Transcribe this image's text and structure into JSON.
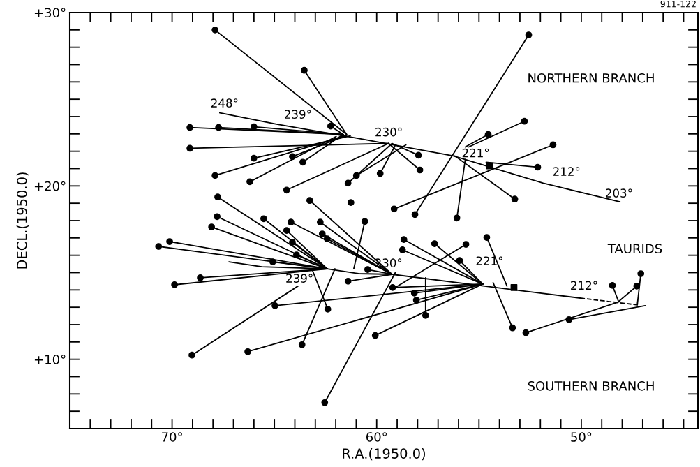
{
  "chart_data": {
    "type": "line",
    "xlabel": "R.A.(1950.0)",
    "ylabel": "DECL.(1950.0)",
    "xlim": [
      75,
      44.3
    ],
    "ylim": [
      6,
      30
    ],
    "xticks": [
      {
        "value": 75,
        "label": null
      },
      {
        "value": 74,
        "label": null
      },
      {
        "value": 73,
        "label": null
      },
      {
        "value": 72,
        "label": null
      },
      {
        "value": 71,
        "label": null
      },
      {
        "value": 70,
        "label": "70°"
      },
      {
        "value": 69,
        "label": null
      },
      {
        "value": 68,
        "label": null
      },
      {
        "value": 67,
        "label": null
      },
      {
        "value": 66,
        "label": null
      },
      {
        "value": 65,
        "label": null
      },
      {
        "value": 64,
        "label": null
      },
      {
        "value": 63,
        "label": null
      },
      {
        "value": 62,
        "label": null
      },
      {
        "value": 61,
        "label": null
      },
      {
        "value": 60,
        "label": "60°"
      },
      {
        "value": 59,
        "label": null
      },
      {
        "value": 58,
        "label": null
      },
      {
        "value": 57,
        "label": null
      },
      {
        "value": 56,
        "label": null
      },
      {
        "value": 55,
        "label": null
      },
      {
        "value": 54,
        "label": null
      },
      {
        "value": 53,
        "label": null
      },
      {
        "value": 52,
        "label": null
      },
      {
        "value": 51,
        "label": null
      },
      {
        "value": 50,
        "label": "50°"
      },
      {
        "value": 49,
        "label": null
      },
      {
        "value": 48,
        "label": null
      },
      {
        "value": 47,
        "label": null
      },
      {
        "value": 46,
        "label": null
      },
      {
        "value": 45,
        "label": null
      }
    ],
    "yticks": [
      {
        "value": 7,
        "label": null
      },
      {
        "value": 8,
        "label": null
      },
      {
        "value": 9,
        "label": null
      },
      {
        "value": 10,
        "label": "+10°"
      },
      {
        "value": 11,
        "label": null
      },
      {
        "value": 12,
        "label": null
      },
      {
        "value": 13,
        "label": null
      },
      {
        "value": 14,
        "label": null
      },
      {
        "value": 15,
        "label": null
      },
      {
        "value": 16,
        "label": null
      },
      {
        "value": 17,
        "label": null
      },
      {
        "value": 18,
        "label": null
      },
      {
        "value": 19,
        "label": null
      },
      {
        "value": 20,
        "label": "+20°"
      },
      {
        "value": 21,
        "label": null
      },
      {
        "value": 22,
        "label": null
      },
      {
        "value": 23,
        "label": null
      },
      {
        "value": 24,
        "label": null
      },
      {
        "value": 25,
        "label": null
      },
      {
        "value": 26,
        "label": null
      },
      {
        "value": 27,
        "label": null
      },
      {
        "value": 28,
        "label": null
      },
      {
        "value": 29,
        "label": null
      },
      {
        "value": 30,
        "label": "+30°"
      }
    ],
    "color": "#000000",
    "line_style": "solid",
    "series": [
      {
        "x": [
          67.67,
          64.94,
          61.02,
          56.25,
          51.86,
          48.11
        ],
        "values": [
          24.22,
          23.57,
          22.77,
          21.73,
          20.16,
          19.08
        ]
      },
      {
        "x": [
          67.22,
          65.62,
          62.42,
          60.89,
          59.25,
          54.72,
          50.05
        ],
        "values": [
          15.62,
          15.34,
          15.22,
          14.94,
          14.9,
          14.22,
          13.53
        ]
      },
      {
        "x": [
          50.05,
          47.22
        ],
        "values": [
          13.53,
          13.13
        ],
        "line_style": "dashed"
      },
      {
        "x": [
          67.9,
          61.47
        ],
        "values": [
          29.0,
          22.97
        ]
      },
      {
        "x": [
          63.54,
          61.47
        ],
        "values": [
          26.67,
          22.97
        ]
      },
      {
        "x": [
          69.13,
          61.64
        ],
        "values": [
          23.37,
          22.97
        ]
      },
      {
        "x": [
          67.73,
          61.64
        ],
        "values": [
          23.37,
          22.97
        ]
      },
      {
        "x": [
          66.0,
          61.64
        ],
        "values": [
          23.41,
          22.97
        ]
      },
      {
        "x": [
          62.25,
          61.64
        ],
        "values": [
          23.45,
          22.97
        ]
      },
      {
        "x": [
          69.13,
          59.42
        ],
        "values": [
          22.17,
          22.45
        ]
      },
      {
        "x": [
          66.0,
          61.29
        ],
        "values": [
          21.6,
          22.89
        ]
      },
      {
        "x": [
          64.12,
          61.47
        ],
        "values": [
          21.69,
          22.93
        ]
      },
      {
        "x": [
          63.61,
          61.64
        ],
        "values": [
          21.37,
          22.97
        ]
      },
      {
        "x": [
          67.9,
          61.47
        ],
        "values": [
          20.6,
          22.93
        ]
      },
      {
        "x": [
          66.2,
          61.98
        ],
        "values": [
          20.24,
          22.85
        ]
      },
      {
        "x": [
          64.4,
          59.42
        ],
        "values": [
          19.76,
          22.45
        ]
      },
      {
        "x": [
          60.99,
          58.57
        ],
        "values": [
          20.6,
          22.37
        ]
      },
      {
        "x": [
          61.4,
          59.25
        ],
        "values": [
          20.16,
          22.45
        ]
      },
      {
        "x": [
          59.83,
          59.08
        ],
        "values": [
          20.72,
          22.37
        ]
      },
      {
        "x": [
          57.96,
          59.25
        ],
        "values": [
          21.77,
          22.45
        ]
      },
      {
        "x": [
          57.89,
          59.42
        ],
        "values": [
          20.92,
          22.45
        ]
      },
      {
        "x": [
          52.57,
          58.13
        ],
        "values": [
          28.71,
          18.35
        ]
      },
      {
        "x": [
          54.55,
          55.67
        ],
        "values": [
          22.97,
          22.25
        ]
      },
      {
        "x": [
          52.78,
          55.5
        ],
        "values": [
          23.73,
          22.25
        ]
      },
      {
        "x": [
          52.13,
          54.65
        ],
        "values": [
          21.08,
          21.37
        ]
      },
      {
        "x": [
          53.25,
          56.18
        ],
        "values": [
          19.24,
          21.73
        ]
      },
      {
        "x": [
          56.08,
          55.67
        ],
        "values": [
          18.15,
          21.53
        ]
      },
      {
        "x": [
          59.15,
          51.38
        ],
        "values": [
          18.67,
          22.37
        ]
      },
      {
        "x": [
          67.77,
          62.42
        ],
        "values": [
          19.36,
          15.22
        ]
      },
      {
        "x": [
          63.27,
          59.25
        ],
        "values": [
          19.16,
          14.9
        ]
      },
      {
        "x": [
          67.8,
          62.42
        ],
        "values": [
          18.23,
          15.22
        ]
      },
      {
        "x": [
          65.52,
          62.42
        ],
        "values": [
          18.11,
          15.22
        ]
      },
      {
        "x": [
          68.07,
          62.42
        ],
        "values": [
          17.63,
          15.22
        ]
      },
      {
        "x": [
          64.19,
          59.25
        ],
        "values": [
          17.91,
          14.9
        ]
      },
      {
        "x": [
          62.76,
          59.25
        ],
        "values": [
          17.91,
          14.9
        ]
      },
      {
        "x": [
          64.4,
          62.42
        ],
        "values": [
          17.43,
          15.22
        ]
      },
      {
        "x": [
          62.66,
          59.25
        ],
        "values": [
          17.23,
          14.9
        ]
      },
      {
        "x": [
          62.42,
          59.25
        ],
        "values": [
          16.95,
          14.9
        ]
      },
      {
        "x": [
          60.58,
          61.12
        ],
        "values": [
          17.95,
          15.22
        ]
      },
      {
        "x": [
          70.12,
          62.42
        ],
        "values": [
          16.79,
          15.22
        ]
      },
      {
        "x": [
          70.66,
          62.42
        ],
        "values": [
          16.51,
          15.22
        ]
      },
      {
        "x": [
          64.12,
          62.42
        ],
        "values": [
          16.75,
          15.22
        ]
      },
      {
        "x": [
          63.92,
          62.42
        ],
        "values": [
          16.02,
          15.22
        ]
      },
      {
        "x": [
          65.08,
          62.42
        ],
        "values": [
          15.62,
          15.22
        ]
      },
      {
        "x": [
          60.44,
          59.25
        ],
        "values": [
          15.18,
          14.9
        ]
      },
      {
        "x": [
          68.62,
          62.42
        ],
        "values": [
          14.7,
          15.22
        ]
      },
      {
        "x": [
          69.88,
          62.42
        ],
        "values": [
          14.3,
          15.22
        ]
      },
      {
        "x": [
          61.4,
          59.25
        ],
        "values": [
          14.5,
          14.9
        ]
      },
      {
        "x": [
          62.39,
          63.17
        ],
        "values": [
          12.89,
          15.22
        ]
      },
      {
        "x": [
          64.97,
          54.82
        ],
        "values": [
          13.09,
          14.34
        ]
      },
      {
        "x": [
          69.03,
          63.85
        ],
        "values": [
          10.24,
          14.22
        ]
      },
      {
        "x": [
          66.3,
          54.82
        ],
        "values": [
          10.44,
          14.34
        ]
      },
      {
        "x": [
          63.65,
          62.04
        ],
        "values": [
          10.84,
          15.22
        ]
      },
      {
        "x": [
          62.54,
          59.08
        ],
        "values": [
          7.5,
          15.02
        ]
      },
      {
        "x": [
          60.07,
          54.82
        ],
        "values": [
          11.37,
          14.34
        ]
      },
      {
        "x": [
          59.22,
          54.82
        ],
        "values": [
          14.14,
          14.34
        ]
      },
      {
        "x": [
          58.16,
          54.82
        ],
        "values": [
          13.82,
          14.34
        ]
      },
      {
        "x": [
          58.06,
          54.82
        ],
        "values": [
          13.41,
          14.34
        ]
      },
      {
        "x": [
          58.67,
          54.82
        ],
        "values": [
          16.91,
          14.34
        ]
      },
      {
        "x": [
          58.74,
          54.82
        ],
        "values": [
          16.31,
          14.34
        ]
      },
      {
        "x": [
          57.17,
          54.82
        ],
        "values": [
          16.67,
          14.34
        ]
      },
      {
        "x": [
          55.64,
          59.25
        ],
        "values": [
          16.63,
          14.02
        ]
      },
      {
        "x": [
          55.95,
          54.82
        ],
        "values": [
          15.7,
          14.34
        ]
      },
      {
        "x": [
          57.61,
          57.61
        ],
        "values": [
          12.53,
          14.7
        ]
      },
      {
        "x": [
          54.62,
          53.63
        ],
        "values": [
          17.03,
          14.22
        ]
      },
      {
        "x": [
          53.36,
          54.31
        ],
        "values": [
          11.81,
          14.42
        ]
      },
      {
        "x": [
          52.71,
          48.11
        ],
        "values": [
          11.53,
          13.33
        ]
      },
      {
        "x": [
          50.6,
          46.88
        ],
        "values": [
          12.29,
          13.09
        ]
      },
      {
        "x": [
          48.48,
          48.18
        ],
        "values": [
          14.26,
          13.33
        ]
      },
      {
        "x": [
          47.29,
          48.18
        ],
        "values": [
          14.22,
          13.33
        ]
      },
      {
        "x": [
          47.09,
          47.26
        ],
        "values": [
          14.94,
          13.17
        ]
      },
      {
        "type": "scatter",
        "marker": "circle",
        "x": [
          67.9,
          63.54,
          69.13,
          67.73,
          66.0,
          62.25,
          69.13,
          66.0,
          64.12,
          63.61,
          67.9,
          66.2,
          64.4,
          60.99,
          61.4,
          59.83,
          57.96,
          57.89,
          52.57,
          58.13,
          54.55,
          52.78,
          51.38,
          52.13,
          53.25,
          56.08,
          59.15,
          67.77,
          63.27,
          67.8,
          65.52,
          68.07,
          64.19,
          62.76,
          64.4,
          62.66,
          62.42,
          60.58,
          70.12,
          70.66,
          64.12,
          63.92,
          65.08,
          60.44,
          68.62,
          69.88,
          61.4,
          62.39,
          64.97,
          69.03,
          66.3,
          63.65,
          62.54,
          60.07,
          59.22,
          58.16,
          58.06,
          58.67,
          58.74,
          57.17,
          55.64,
          55.95,
          57.61,
          54.62,
          53.36,
          52.71,
          50.6,
          48.48,
          47.29,
          47.09
        ],
        "values": [
          29.0,
          26.67,
          23.37,
          23.37,
          23.41,
          23.45,
          22.17,
          21.6,
          21.69,
          21.37,
          20.6,
          20.24,
          19.76,
          20.6,
          20.16,
          20.72,
          21.77,
          20.92,
          28.71,
          18.35,
          22.97,
          23.73,
          22.37,
          21.08,
          19.24,
          18.15,
          18.67,
          19.36,
          19.16,
          18.23,
          18.11,
          17.63,
          17.91,
          17.91,
          17.43,
          17.23,
          16.95,
          17.95,
          16.79,
          16.51,
          16.75,
          16.02,
          15.62,
          15.18,
          14.7,
          14.3,
          14.5,
          12.89,
          13.09,
          10.24,
          10.44,
          10.84,
          7.5,
          11.37,
          14.14,
          13.82,
          13.41,
          16.91,
          16.31,
          16.67,
          16.63,
          15.7,
          12.53,
          17.03,
          11.81,
          11.53,
          12.29,
          14.26,
          14.22,
          14.94
        ]
      },
      {
        "type": "scatter",
        "marker": "circle",
        "x": [
          61.26
        ],
        "values": [
          19.04
        ]
      },
      {
        "type": "scatter",
        "marker": "square",
        "x": [
          54.48,
          53.29
        ],
        "values": [
          21.16,
          14.14
        ]
      }
    ],
    "annotations": [
      "911-122",
      "NORTHERN BRANCH",
      "TAURIDS",
      "SOUTHERN BRANCH",
      {
        "text": "248°",
        "x": 67.67,
        "y": 24.22
      },
      {
        "text": "239°",
        "x": 64.94,
        "y": 23.57
      },
      {
        "text": "230°",
        "x": 61.02,
        "y": 22.77
      },
      {
        "text": "221°",
        "x": 56.25,
        "y": 21.73
      },
      {
        "text": "212°",
        "x": 51.86,
        "y": 20.16
      },
      {
        "text": "203°",
        "x": 48.11,
        "y": 19.08
      },
      {
        "text": "239°",
        "x": 65.62,
        "y": 15.34
      },
      {
        "text": "230°",
        "x": 60.89,
        "y": 14.94
      },
      {
        "text": "221°",
        "x": 54.72,
        "y": 14.22
      },
      {
        "text": "212°",
        "x": 50.05,
        "y": 13.53
      }
    ]
  }
}
